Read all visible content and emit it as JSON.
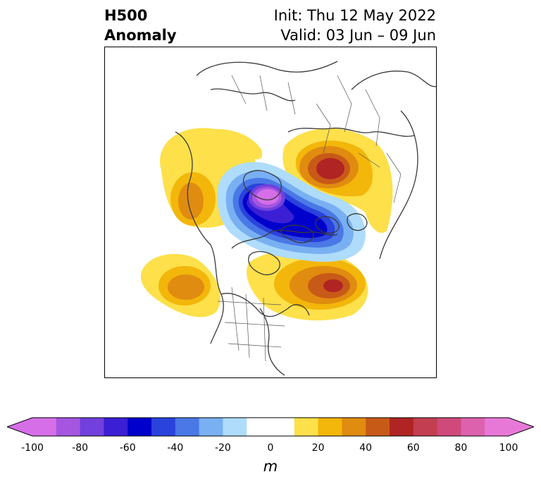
{
  "title": {
    "left_line1": "H500",
    "left_line2": "Anomaly",
    "right_line1": "Init: Thu 12 May 2022",
    "right_line2": "Valid: 03 Jun – 09 Jun"
  },
  "colorbar": {
    "unit_label": "m",
    "ticks": [
      "-100",
      "-80",
      "-60",
      "-40",
      "-20",
      "0",
      "20",
      "40",
      "60",
      "80",
      "100"
    ],
    "colors": [
      "#d66ee8",
      "#a556e0",
      "#7140dd",
      "#3b1fd4",
      "#0000cc",
      "#2a43dc",
      "#4a78e6",
      "#78b0f2",
      "#aedcfa",
      "#ffffff",
      "#ffffff",
      "#fde04a",
      "#f3b60a",
      "#e08c10",
      "#c85a18",
      "#b02424",
      "#c23e50",
      "#cf4a7a",
      "#dc62ad",
      "#e878d8"
    ],
    "extend": "both"
  },
  "map": {
    "projection": "north-polar-stereographic",
    "field": "500 hPa geopotential height anomaly",
    "features": [
      "coastlines",
      "country-borders",
      "state-borders"
    ]
  }
}
